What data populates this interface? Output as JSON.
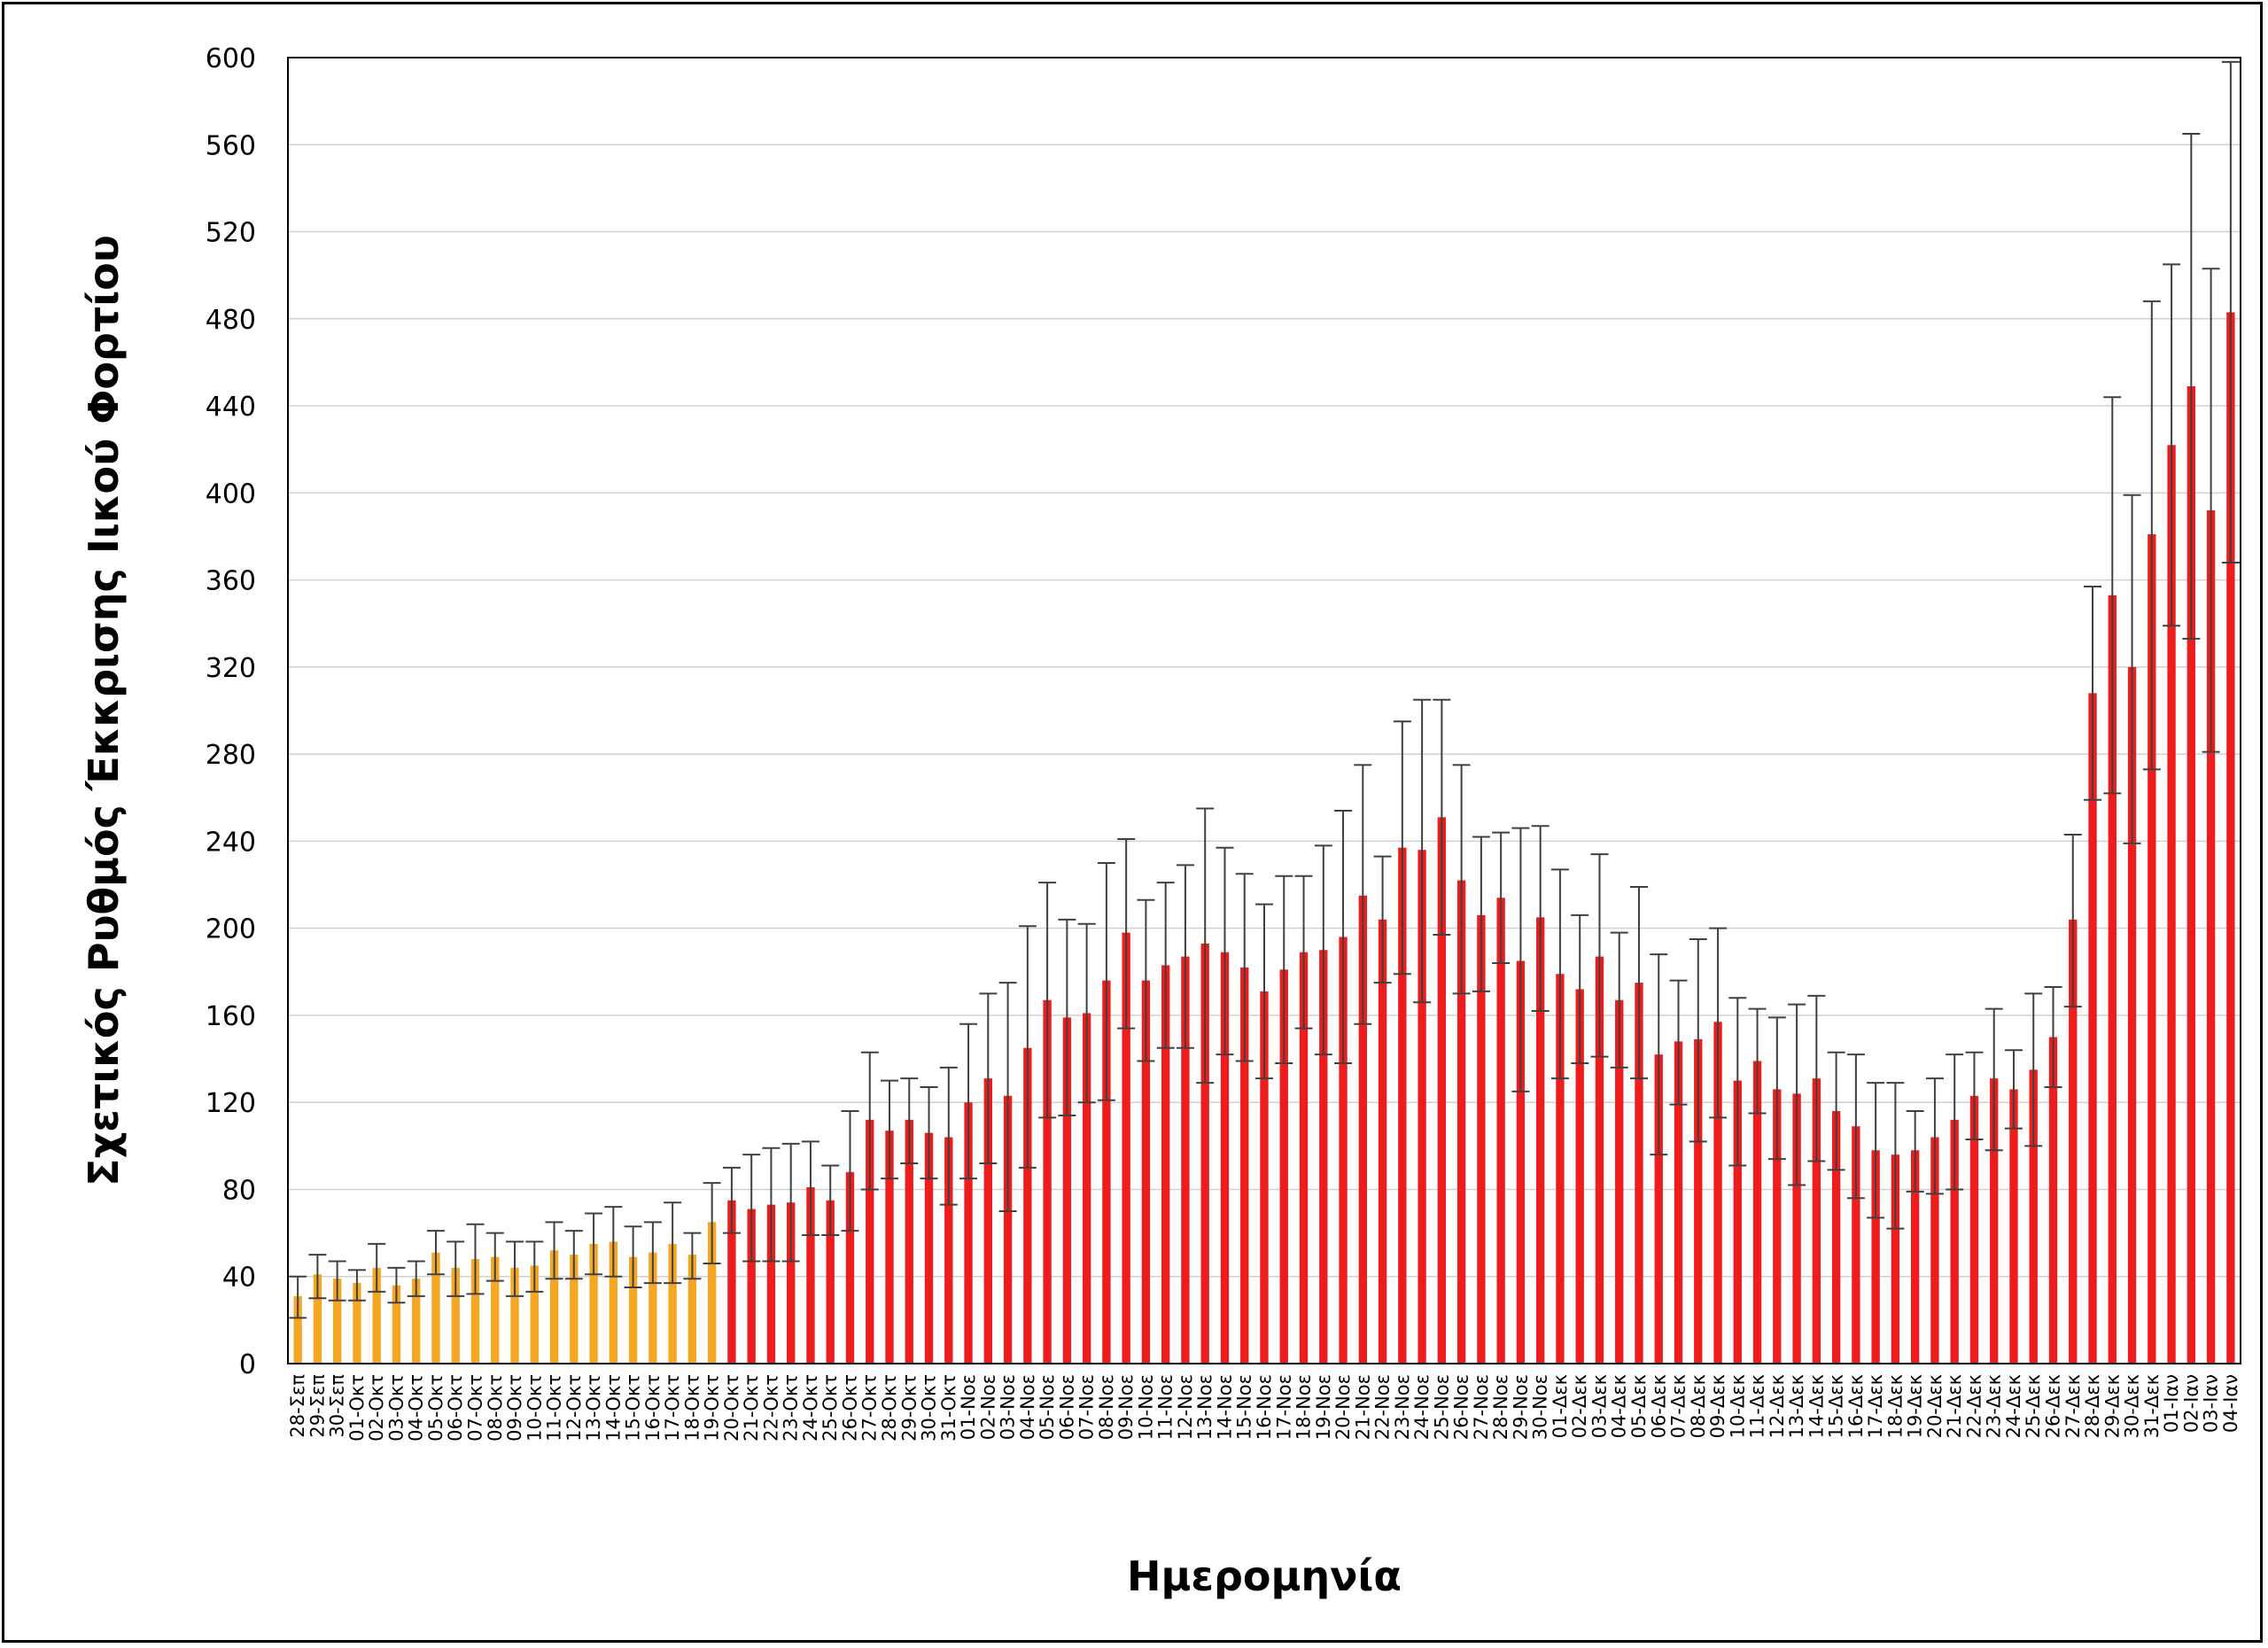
{
  "chart_data": {
    "type": "bar",
    "title": "",
    "xlabel": "Ημερομηνία",
    "ylabel": "Σχετικός Ρυθμός Έκκρισης Ιικού Φορτίου",
    "ylim": [
      0,
      600
    ],
    "yticks": [
      0,
      40,
      80,
      120,
      160,
      200,
      240,
      280,
      320,
      360,
      400,
      440,
      480,
      520,
      560,
      600
    ],
    "grid": "horizontal",
    "legend": "none",
    "error_bars": true,
    "colors": {
      "early": "#F5A623",
      "late": "#EE1C1C",
      "error": "#404040",
      "grid": "#d0d0d0"
    },
    "categories": [
      "28-Σεπ",
      "29-Σεπ",
      "30-Σεπ",
      "01-Οκτ",
      "02-Οκτ",
      "03-Οκτ",
      "04-Οκτ",
      "05-Οκτ",
      "06-Οκτ",
      "07-Οκτ",
      "08-Οκτ",
      "09-Οκτ",
      "10-Οκτ",
      "11-Οκτ",
      "12-Οκτ",
      "13-Οκτ",
      "14-Οκτ",
      "15-Οκτ",
      "16-Οκτ",
      "17-Οκτ",
      "18-Οκτ",
      "19-Οκτ",
      "20-Οκτ",
      "21-Οκτ",
      "22-Οκτ",
      "23-Οκτ",
      "24-Οκτ",
      "25-Οκτ",
      "26-Οκτ",
      "27-Οκτ",
      "28-Οκτ",
      "29-Οκτ",
      "30-Οκτ",
      "31-Οκτ",
      "01-Νοε",
      "02-Νοε",
      "03-Νοε",
      "04-Νοε",
      "05-Νοε",
      "06-Νοε",
      "07-Νοε",
      "08-Νοε",
      "09-Νοε",
      "10-Νοε",
      "11-Νοε",
      "12-Νοε",
      "13-Νοε",
      "14-Νοε",
      "15-Νοε",
      "16-Νοε",
      "17-Νοε",
      "18-Νοε",
      "19-Νοε",
      "20-Νοε",
      "21-Νοε",
      "22-Νοε",
      "23-Νοε",
      "24-Νοε",
      "25-Νοε",
      "26-Νοε",
      "27-Νοε",
      "28-Νοε",
      "29-Νοε",
      "30-Νοε",
      "01-Δεκ",
      "02-Δεκ",
      "03-Δεκ",
      "04-Δεκ",
      "05-Δεκ",
      "06-Δεκ",
      "07-Δεκ",
      "08-Δεκ",
      "09-Δεκ",
      "10-Δεκ",
      "11-Δεκ",
      "12-Δεκ",
      "13-Δεκ",
      "14-Δεκ",
      "15-Δεκ",
      "16-Δεκ",
      "17-Δεκ",
      "18-Δεκ",
      "19-Δεκ",
      "20-Δεκ",
      "21-Δεκ",
      "22-Δεκ",
      "23-Δεκ",
      "24-Δεκ",
      "25-Δεκ",
      "26-Δεκ",
      "27-Δεκ",
      "28-Δεκ",
      "29-Δεκ",
      "30-Δεκ",
      "31-Δεκ",
      "01-Ιαν",
      "02-Ιαν",
      "03-Ιαν",
      "04-Ιαν"
    ],
    "values": [
      31,
      41,
      39,
      37,
      44,
      36,
      39,
      51,
      44,
      48,
      49,
      44,
      45,
      52,
      50,
      55,
      56,
      49,
      51,
      55,
      50,
      65,
      75,
      71,
      73,
      74,
      81,
      75,
      88,
      112,
      107,
      112,
      106,
      104,
      120,
      131,
      123,
      145,
      167,
      159,
      161,
      176,
      198,
      176,
      183,
      187,
      193,
      189,
      182,
      171,
      181,
      189,
      190,
      196,
      215,
      204,
      237,
      236,
      251,
      222,
      206,
      214,
      185,
      205,
      179,
      172,
      187,
      167,
      175,
      142,
      148,
      149,
      157,
      130,
      139,
      126,
      124,
      131,
      116,
      109,
      98,
      96,
      98,
      104,
      112,
      123,
      131,
      126,
      135,
      150,
      204,
      308,
      353,
      320,
      381,
      422,
      449,
      392,
      483
    ],
    "err_upper": [
      40,
      50,
      47,
      43,
      55,
      44,
      47,
      61,
      56,
      64,
      60,
      56,
      56,
      65,
      61,
      69,
      72,
      63,
      65,
      74,
      60,
      83,
      90,
      96,
      99,
      101,
      102,
      91,
      116,
      143,
      130,
      131,
      127,
      136,
      156,
      170,
      175,
      201,
      221,
      204,
      202,
      230,
      241,
      213,
      221,
      229,
      255,
      237,
      225,
      211,
      224,
      224,
      238,
      254,
      275,
      233,
      295,
      305,
      305,
      275,
      242,
      244,
      246,
      247,
      227,
      206,
      234,
      198,
      219,
      188,
      176,
      195,
      200,
      168,
      163,
      159,
      165,
      169,
      143,
      142,
      129,
      129,
      116,
      131,
      142,
      143,
      163,
      144,
      170,
      173,
      243,
      357,
      444,
      399,
      488,
      505,
      565,
      503,
      598
    ],
    "err_lower": [
      21,
      30,
      29,
      29,
      33,
      28,
      31,
      41,
      31,
      32,
      38,
      31,
      33,
      39,
      39,
      41,
      40,
      35,
      37,
      37,
      39,
      46,
      60,
      47,
      47,
      47,
      59,
      59,
      61,
      80,
      85,
      92,
      85,
      73,
      85,
      92,
      70,
      90,
      113,
      114,
      120,
      121,
      154,
      139,
      145,
      145,
      129,
      142,
      139,
      131,
      138,
      154,
      142,
      138,
      156,
      175,
      179,
      166,
      197,
      170,
      171,
      184,
      125,
      162,
      131,
      138,
      141,
      136,
      131,
      96,
      119,
      102,
      113,
      91,
      115,
      94,
      82,
      93,
      89,
      76,
      67,
      62,
      79,
      78,
      80,
      103,
      98,
      108,
      100,
      127,
      164,
      259,
      262,
      239,
      273,
      339,
      333,
      281,
      368
    ],
    "early_count": 22
  }
}
